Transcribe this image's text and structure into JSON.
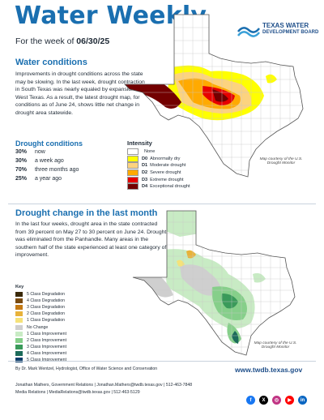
{
  "header": {
    "title": "Water Weekly",
    "week_prefix": "For the week of",
    "week_date": "06/30/25",
    "logo_line1": "TEXAS WATER",
    "logo_line2": "DEVELOPMENT BOARD"
  },
  "conditions": {
    "heading": "Water conditions",
    "paragraph": "Improvements in drought conditions across the state may be slowing. In the last week, drought contraction in South Texas was nearly equaled by expansion in West Texas. As a result, the latest drought map, for conditions as of June 24, shows little net change in drought area statewide.",
    "map_credit": "Map courtesy of the U.S. Drought Monitor"
  },
  "drought_conditions": {
    "heading": "Drought conditions",
    "rows": [
      {
        "value": "30%",
        "label": "now"
      },
      {
        "value": "30%",
        "label": "a week ago"
      },
      {
        "value": "70%",
        "label": "three months ago"
      },
      {
        "value": "25%",
        "label": "a year ago"
      }
    ]
  },
  "intensity_legend": {
    "heading": "Intensity",
    "items": [
      {
        "code": "",
        "label": "None",
        "color": "#ffffff"
      },
      {
        "code": "D0",
        "label": "Abnormally dry",
        "color": "#ffff00"
      },
      {
        "code": "D1",
        "label": "Moderate drought",
        "color": "#fcd37f"
      },
      {
        "code": "D2",
        "label": "Severe drought",
        "color": "#ffaa00"
      },
      {
        "code": "D3",
        "label": "Extreme drought",
        "color": "#e60000"
      },
      {
        "code": "D4",
        "label": "Exceptional drought",
        "color": "#730000"
      }
    ]
  },
  "change": {
    "heading": "Drought change in the last month",
    "paragraph": "In the last four weeks, drought area in the state contracted from 39 percent on May 27 to 30 percent on June 24. Drought was eliminated from the Panhandle. Many areas in the southern half of the state experienced at least one category of improvement.",
    "map_credit": "Map courtesy of the U.S. Drought Monitor"
  },
  "change_legend": {
    "heading": "Key",
    "items": [
      {
        "label": "5 Class Degradation",
        "color": "#3b2a0a"
      },
      {
        "label": "4 Class Degradation",
        "color": "#7a4b10"
      },
      {
        "label": "3 Class Degradation",
        "color": "#c47a14"
      },
      {
        "label": "2 Class Degradation",
        "color": "#e8b23a"
      },
      {
        "label": "1 Class Degradation",
        "color": "#f5e27a"
      },
      {
        "label": "No Change",
        "color": "#cfcfcf"
      },
      {
        "label": "1 Class Improvement",
        "color": "#c8ebc4"
      },
      {
        "label": "2 Class Improvement",
        "color": "#86cf8a"
      },
      {
        "label": "3 Class Improvement",
        "color": "#3a9a5a"
      },
      {
        "label": "4 Class Improvement",
        "color": "#1c6b5a"
      },
      {
        "label": "5 Class Improvement",
        "color": "#0e3e6b"
      }
    ]
  },
  "footer": {
    "author": "By Dr. Mark Wentzel, Hydrologist, Office of Water Science and Conservation",
    "contact1": "Jonathan Mathers, Government Relations | Jonathan.Mathers@twdb.texas.gov | 512-463-7848",
    "contact2": "Media Relations | MediaRelations@twdb.texas.gov | 512-463-5129",
    "url": "www.twdb.texas.gov",
    "social": [
      {
        "name": "facebook-icon",
        "glyph": "f",
        "color": "#1877f2"
      },
      {
        "name": "x-icon",
        "glyph": "X",
        "color": "#000000"
      },
      {
        "name": "instagram-icon",
        "glyph": "◎",
        "color": "#c13584"
      },
      {
        "name": "youtube-icon",
        "glyph": "▶",
        "color": "#ff0000"
      },
      {
        "name": "linkedin-icon",
        "glyph": "in",
        "color": "#0a66c2"
      }
    ]
  }
}
